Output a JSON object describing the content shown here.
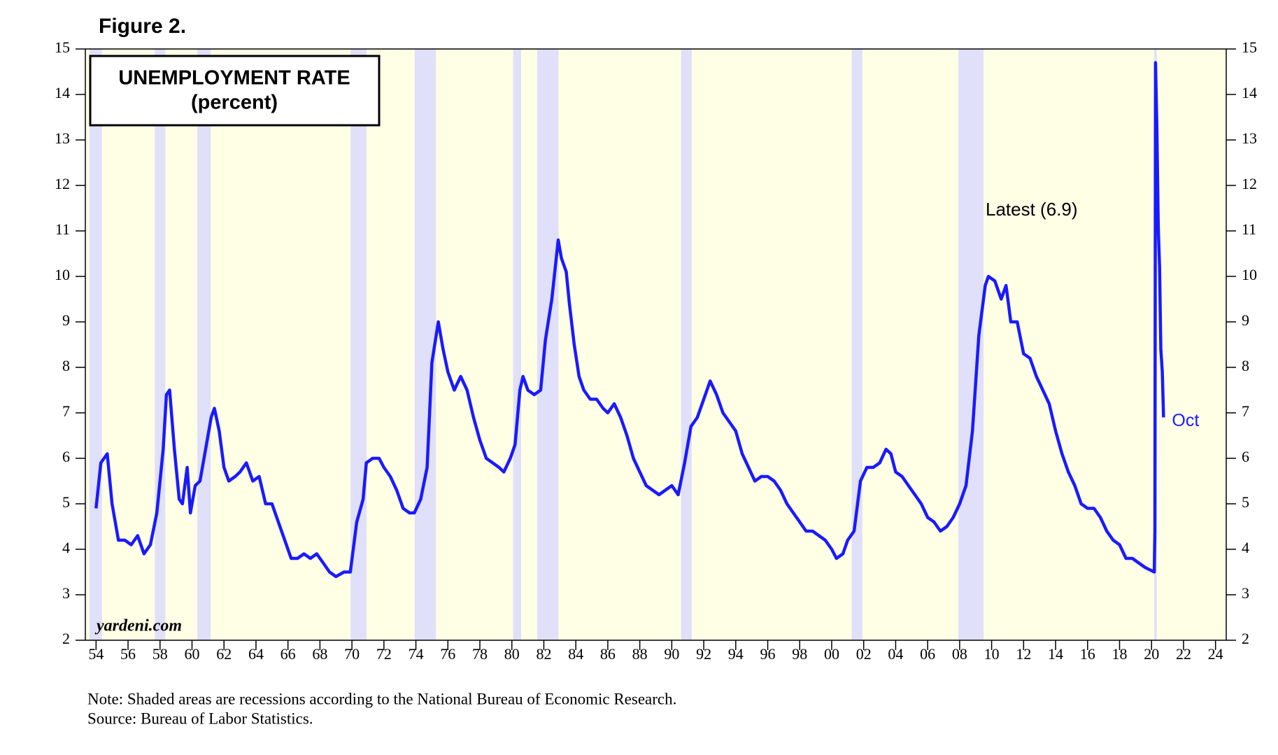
{
  "chart_data": {
    "type": "line",
    "figure_label": "Figure 2.",
    "title": "UNEMPLOYMENT RATE",
    "subtitle": "(percent)",
    "watermark": "yardeni.com",
    "annotation": "Latest (6.9)",
    "last_point_label": "Oct",
    "note": "Note: Shaded areas are recessions according to the National Bureau of Economic Research.",
    "source": "Source: Bureau of Labor Statistics.",
    "xlim": [
      1953.33,
      2024.67
    ],
    "ylim": [
      2,
      15
    ],
    "yticks": [
      2,
      3,
      4,
      5,
      6,
      7,
      8,
      9,
      10,
      11,
      12,
      13,
      14,
      15
    ],
    "xticks": [
      {
        "value": 1954,
        "label": "54"
      },
      {
        "value": 1956,
        "label": "56"
      },
      {
        "value": 1958,
        "label": "58"
      },
      {
        "value": 1960,
        "label": "60"
      },
      {
        "value": 1962,
        "label": "62"
      },
      {
        "value": 1964,
        "label": "64"
      },
      {
        "value": 1966,
        "label": "66"
      },
      {
        "value": 1968,
        "label": "68"
      },
      {
        "value": 1970,
        "label": "70"
      },
      {
        "value": 1972,
        "label": "72"
      },
      {
        "value": 1974,
        "label": "74"
      },
      {
        "value": 1976,
        "label": "76"
      },
      {
        "value": 1978,
        "label": "78"
      },
      {
        "value": 1980,
        "label": "80"
      },
      {
        "value": 1982,
        "label": "82"
      },
      {
        "value": 1984,
        "label": "84"
      },
      {
        "value": 1986,
        "label": "86"
      },
      {
        "value": 1988,
        "label": "88"
      },
      {
        "value": 1990,
        "label": "90"
      },
      {
        "value": 1992,
        "label": "92"
      },
      {
        "value": 1994,
        "label": "94"
      },
      {
        "value": 1996,
        "label": "96"
      },
      {
        "value": 1998,
        "label": "98"
      },
      {
        "value": 2000,
        "label": "00"
      },
      {
        "value": 2002,
        "label": "02"
      },
      {
        "value": 2004,
        "label": "04"
      },
      {
        "value": 2006,
        "label": "06"
      },
      {
        "value": 2008,
        "label": "08"
      },
      {
        "value": 2010,
        "label": "10"
      },
      {
        "value": 2012,
        "label": "12"
      },
      {
        "value": 2014,
        "label": "14"
      },
      {
        "value": 2016,
        "label": "16"
      },
      {
        "value": 2018,
        "label": "18"
      },
      {
        "value": 2020,
        "label": "20"
      },
      {
        "value": 2022,
        "label": "22"
      },
      {
        "value": 2024,
        "label": "24"
      }
    ],
    "background_color": "#ffffe6",
    "recession_color": "#e0e0fa",
    "recessions": [
      [
        1953.58,
        1954.37
      ],
      [
        1957.67,
        1958.33
      ],
      [
        1960.33,
        1961.17
      ],
      [
        1969.92,
        1970.92
      ],
      [
        1973.92,
        1975.25
      ],
      [
        1980.08,
        1980.58
      ],
      [
        1981.58,
        1982.92
      ],
      [
        1990.58,
        1991.25
      ],
      [
        2001.25,
        2001.92
      ],
      [
        2007.92,
        2009.5
      ],
      [
        2020.17,
        2020.33
      ]
    ],
    "series": [
      {
        "name": "UNEMPLOYMENT RATE",
        "color": "#1a1aff",
        "x": [
          1954.0,
          1954.3,
          1954.7,
          1955.0,
          1955.4,
          1955.8,
          1956.2,
          1956.6,
          1957.0,
          1957.4,
          1957.8,
          1958.2,
          1958.4,
          1958.6,
          1958.9,
          1959.2,
          1959.4,
          1959.7,
          1959.9,
          1960.2,
          1960.5,
          1960.8,
          1961.2,
          1961.4,
          1961.7,
          1962.0,
          1962.3,
          1962.7,
          1963.0,
          1963.4,
          1963.8,
          1964.2,
          1964.6,
          1965.0,
          1965.4,
          1965.8,
          1966.2,
          1966.6,
          1967.0,
          1967.4,
          1967.8,
          1968.2,
          1968.6,
          1969.0,
          1969.5,
          1969.9,
          1970.3,
          1970.7,
          1970.9,
          1971.3,
          1971.7,
          1972.0,
          1972.4,
          1972.8,
          1973.2,
          1973.6,
          1973.9,
          1974.3,
          1974.7,
          1975.0,
          1975.4,
          1975.7,
          1976.0,
          1976.4,
          1976.8,
          1977.2,
          1977.6,
          1978.0,
          1978.4,
          1978.8,
          1979.2,
          1979.5,
          1979.9,
          1980.2,
          1980.5,
          1980.7,
          1981.0,
          1981.4,
          1981.8,
          1982.1,
          1982.5,
          1982.9,
          1983.1,
          1983.4,
          1983.6,
          1983.9,
          1984.2,
          1984.5,
          1984.9,
          1985.3,
          1985.7,
          1986.0,
          1986.4,
          1986.8,
          1987.2,
          1987.6,
          1988.0,
          1988.4,
          1988.8,
          1989.2,
          1989.6,
          1990.0,
          1990.4,
          1990.8,
          1991.2,
          1991.6,
          1992.0,
          1992.4,
          1992.8,
          1993.2,
          1993.6,
          1994.0,
          1994.4,
          1994.8,
          1995.2,
          1995.6,
          1996.0,
          1996.4,
          1996.8,
          1997.2,
          1997.6,
          1998.0,
          1998.4,
          1998.8,
          1999.2,
          1999.6,
          2000.0,
          2000.3,
          2000.7,
          2001.0,
          2001.4,
          2001.8,
          2002.2,
          2002.6,
          2003.0,
          2003.4,
          2003.7,
          2004.0,
          2004.4,
          2004.8,
          2005.2,
          2005.6,
          2006.0,
          2006.4,
          2006.8,
          2007.2,
          2007.6,
          2008.0,
          2008.4,
          2008.8,
          2009.2,
          2009.6,
          2009.8,
          2010.2,
          2010.6,
          2010.9,
          2011.2,
          2011.6,
          2012.0,
          2012.4,
          2012.8,
          2013.2,
          2013.6,
          2014.0,
          2014.4,
          2014.8,
          2015.2,
          2015.6,
          2016.0,
          2016.4,
          2016.8,
          2017.2,
          2017.6,
          2018.0,
          2018.4,
          2018.8,
          2019.2,
          2019.6,
          2020.17,
          2020.21,
          2020.25,
          2020.33,
          2020.42,
          2020.5,
          2020.58,
          2020.67,
          2020.75
        ],
        "values": [
          4.9,
          5.9,
          6.1,
          5.0,
          4.2,
          4.2,
          4.1,
          4.3,
          3.9,
          4.1,
          4.8,
          6.2,
          7.4,
          7.5,
          6.2,
          5.1,
          5.0,
          5.8,
          4.8,
          5.4,
          5.5,
          6.1,
          6.9,
          7.1,
          6.6,
          5.8,
          5.5,
          5.6,
          5.7,
          5.9,
          5.5,
          5.6,
          5.0,
          5.0,
          4.6,
          4.2,
          3.8,
          3.8,
          3.9,
          3.8,
          3.9,
          3.7,
          3.5,
          3.4,
          3.5,
          3.5,
          4.6,
          5.1,
          5.9,
          6.0,
          6.0,
          5.8,
          5.6,
          5.3,
          4.9,
          4.8,
          4.8,
          5.1,
          5.8,
          8.1,
          9.0,
          8.4,
          7.9,
          7.5,
          7.8,
          7.5,
          6.9,
          6.4,
          6.0,
          5.9,
          5.8,
          5.7,
          6.0,
          6.3,
          7.5,
          7.8,
          7.5,
          7.4,
          7.5,
          8.6,
          9.5,
          10.8,
          10.4,
          10.1,
          9.4,
          8.5,
          7.8,
          7.5,
          7.3,
          7.3,
          7.1,
          7.0,
          7.2,
          6.9,
          6.5,
          6.0,
          5.7,
          5.4,
          5.3,
          5.2,
          5.3,
          5.4,
          5.2,
          5.9,
          6.7,
          6.9,
          7.3,
          7.7,
          7.4,
          7.0,
          6.8,
          6.6,
          6.1,
          5.8,
          5.5,
          5.6,
          5.6,
          5.5,
          5.3,
          5.0,
          4.8,
          4.6,
          4.4,
          4.4,
          4.3,
          4.2,
          4.0,
          3.8,
          3.9,
          4.2,
          4.4,
          5.5,
          5.8,
          5.8,
          5.9,
          6.2,
          6.1,
          5.7,
          5.6,
          5.4,
          5.2,
          5.0,
          4.7,
          4.6,
          4.4,
          4.5,
          4.7,
          5.0,
          5.4,
          6.6,
          8.7,
          9.8,
          10.0,
          9.9,
          9.5,
          9.8,
          9.0,
          9.0,
          8.3,
          8.2,
          7.8,
          7.5,
          7.2,
          6.6,
          6.1,
          5.7,
          5.4,
          5.0,
          4.9,
          4.9,
          4.7,
          4.4,
          4.2,
          4.1,
          3.8,
          3.8,
          3.7,
          3.6,
          3.5,
          4.4,
          14.7,
          13.3,
          11.1,
          10.2,
          8.4,
          7.9,
          6.9
        ]
      }
    ]
  }
}
